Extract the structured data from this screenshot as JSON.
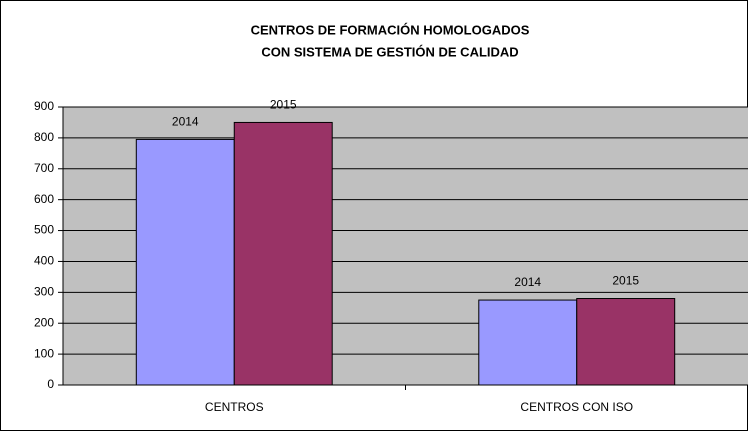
{
  "chart_data": {
    "type": "bar",
    "title": [
      "CENTROS DE FORMACIÓN HOMOLOGADOS",
      "CON SISTEMA DE GESTIÓN DE CALIDAD"
    ],
    "categories": [
      "CENTROS",
      "CENTROS CON ISO"
    ],
    "series": [
      {
        "name": "2014",
        "color": "#9999ff",
        "values": [
          795,
          275
        ]
      },
      {
        "name": "2015",
        "color": "#993366",
        "values": [
          850,
          280
        ]
      }
    ],
    "ylim": [
      0,
      900
    ],
    "yticks": [
      0,
      100,
      200,
      300,
      400,
      500,
      600,
      700,
      800,
      900
    ],
    "grid": true
  }
}
